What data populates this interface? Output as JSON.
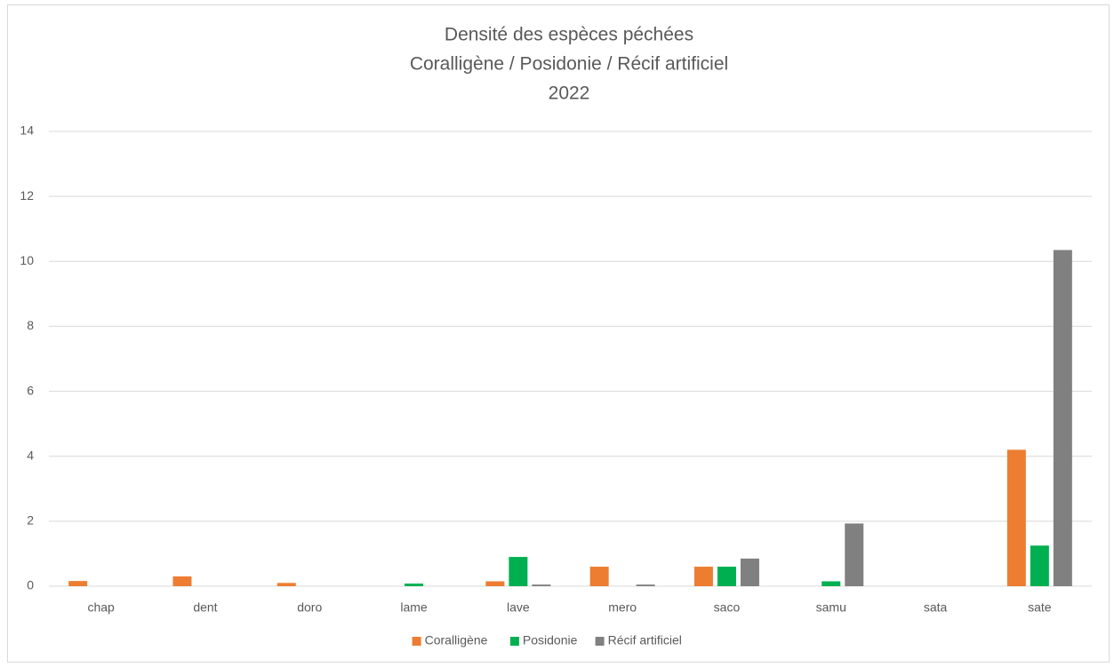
{
  "chart_data": {
    "type": "bar",
    "title": [
      "Densité des espèces péchées",
      "Coralligène / Posidonie / Récif artificiel",
      "2022"
    ],
    "categories": [
      "chap",
      "dent",
      "doro",
      "lame",
      "lave",
      "mero",
      "saco",
      "samu",
      "sata",
      "sate"
    ],
    "series": [
      {
        "name": "Coralligène",
        "color": "#ed7d31",
        "values": [
          0.16,
          0.3,
          0.1,
          0,
          0.15,
          0.6,
          0.6,
          0,
          0,
          4.2
        ]
      },
      {
        "name": "Posidonie",
        "color": "#00b050",
        "values": [
          0,
          0,
          0,
          0.08,
          0.9,
          0,
          0.6,
          0.15,
          0,
          1.25
        ]
      },
      {
        "name": "Récif artificiel",
        "color": "#808080",
        "values": [
          0,
          0,
          0,
          0,
          0.05,
          0.05,
          0.85,
          1.93,
          0,
          10.35
        ]
      }
    ],
    "ylim": [
      0,
      14
    ],
    "yticks": [
      0,
      2,
      4,
      6,
      8,
      10,
      12,
      14
    ],
    "grid": true,
    "legend": "bottom"
  }
}
